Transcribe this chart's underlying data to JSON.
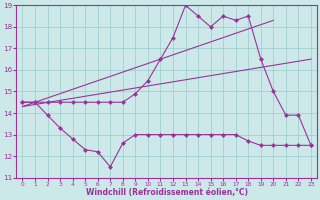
{
  "xlabel": "Windchill (Refroidissement éolien,°C)",
  "background_color": "#cce8e8",
  "grid_color": "#99cccc",
  "line_color": "#993399",
  "xlim": [
    -0.5,
    23.5
  ],
  "ylim": [
    11,
    19
  ],
  "xticks": [
    0,
    1,
    2,
    3,
    4,
    5,
    6,
    7,
    8,
    9,
    10,
    11,
    12,
    13,
    14,
    15,
    16,
    17,
    18,
    19,
    20,
    21,
    22,
    23
  ],
  "yticks": [
    11,
    12,
    13,
    14,
    15,
    16,
    17,
    18,
    19
  ],
  "line1_x": [
    0,
    1,
    2,
    3,
    4,
    5,
    6,
    7,
    8,
    9,
    10,
    11,
    12,
    13,
    14,
    15,
    16,
    17,
    18,
    19,
    20,
    21,
    22,
    23
  ],
  "line1_y": [
    14.5,
    14.5,
    13.9,
    13.3,
    12.8,
    12.3,
    12.2,
    11.5,
    12.6,
    13.0,
    13.0,
    13.0,
    13.0,
    13.0,
    13.0,
    13.0,
    13.0,
    13.0,
    12.7,
    12.5,
    12.5,
    12.5,
    12.5,
    12.5
  ],
  "line2_x": [
    0,
    1,
    2,
    3,
    4,
    5,
    6,
    7,
    8,
    9,
    10,
    11,
    12,
    13,
    14,
    15,
    16,
    17,
    18,
    19,
    20,
    21,
    22,
    23
  ],
  "line2_y": [
    14.5,
    14.5,
    14.5,
    14.5,
    14.5,
    14.5,
    14.5,
    14.5,
    14.5,
    14.9,
    15.5,
    16.5,
    17.5,
    19.0,
    18.5,
    18.0,
    18.5,
    18.3,
    18.5,
    16.5,
    15.0,
    13.9,
    13.9,
    12.5
  ],
  "line3_x": [
    0,
    23
  ],
  "line3_y": [
    14.3,
    16.5
  ],
  "line4_x": [
    0,
    20
  ],
  "line4_y": [
    14.3,
    18.3
  ]
}
